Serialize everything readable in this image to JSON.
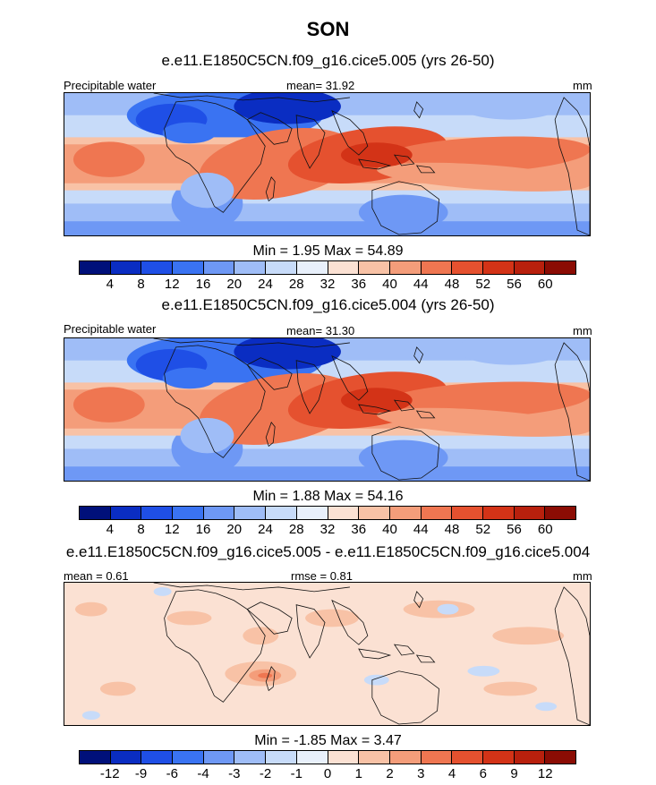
{
  "title": "SON",
  "panels": [
    {
      "subtitle": "e.e11.E1850C5CN.f09_g16.cice5.005 (yrs 26-50)",
      "left_label": "Precipitable water",
      "center_label": "mean=  31.92",
      "right_label": "mm",
      "minmax": "Min =   1.95 Max =  54.89",
      "levels": [
        "4",
        "8",
        "12",
        "16",
        "20",
        "24",
        "28",
        "32",
        "36",
        "40",
        "44",
        "48",
        "52",
        "56",
        "60"
      ],
      "colors": [
        "#00107a",
        "#0a2dc2",
        "#1f4fe6",
        "#3a73f2",
        "#6e98f5",
        "#9fbdf7",
        "#c7dbf9",
        "#e8f0fb",
        "#fbe1d3",
        "#f8c2a6",
        "#f49d7a",
        "#ef7651",
        "#e5512f",
        "#d33317",
        "#b8200d",
        "#8b0c04"
      ],
      "map_kind": "field"
    },
    {
      "subtitle": "e.e11.E1850C5CN.f09_g16.cice5.004 (yrs 26-50)",
      "left_label": "Precipitable water",
      "center_label": "mean=  31.30",
      "right_label": "mm",
      "minmax": "Min =   1.88 Max =  54.16",
      "levels": [
        "4",
        "8",
        "12",
        "16",
        "20",
        "24",
        "28",
        "32",
        "36",
        "40",
        "44",
        "48",
        "52",
        "56",
        "60"
      ],
      "colors": [
        "#00107a",
        "#0a2dc2",
        "#1f4fe6",
        "#3a73f2",
        "#6e98f5",
        "#9fbdf7",
        "#c7dbf9",
        "#e8f0fb",
        "#fbe1d3",
        "#f8c2a6",
        "#f49d7a",
        "#ef7651",
        "#e5512f",
        "#d33317",
        "#b8200d",
        "#8b0c04"
      ],
      "map_kind": "field"
    },
    {
      "subtitle": "e.e11.E1850C5CN.f09_g16.cice5.005 - e.e11.E1850C5CN.f09_g16.cice5.004",
      "left_label": "mean =   0.61",
      "center_label": "rmse =   0.81",
      "right_label": "mm",
      "minmax": "Min =  -1.85 Max =   3.47",
      "levels": [
        "-12",
        "-9",
        "-6",
        "-4",
        "-3",
        "-2",
        "-1",
        "0",
        "1",
        "2",
        "3",
        "4",
        "6",
        "9",
        "12"
      ],
      "colors": [
        "#00107a",
        "#0a2dc2",
        "#1f4fe6",
        "#3a73f2",
        "#6e98f5",
        "#9fbdf7",
        "#c7dbf9",
        "#e8f0fb",
        "#fbe1d3",
        "#f8c2a6",
        "#f49d7a",
        "#ef7651",
        "#e5512f",
        "#d33317",
        "#b8200d",
        "#8b0c04"
      ],
      "map_kind": "diff"
    }
  ]
}
